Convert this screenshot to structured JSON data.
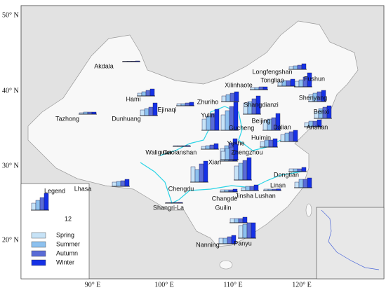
{
  "map": {
    "lat_labels": [
      "50° N",
      "40° N",
      "30° N",
      "20° N"
    ],
    "lon_labels": [
      "90° E",
      "100° E",
      "110° E",
      "120° E"
    ],
    "legend": {
      "title": "Legend",
      "scale": 12,
      "sample_values": [
        5,
        7,
        9,
        12
      ],
      "seasons": [
        {
          "name": "Spring",
          "color": "#c7e3f7"
        },
        {
          "name": "Summer",
          "color": "#8dc1ef"
        },
        {
          "name": "Autumn",
          "color": "#5a6cd6"
        },
        {
          "name": "Winter",
          "color": "#1531e6"
        }
      ]
    },
    "stations": [
      {
        "name": "Akdala",
        "values": [
          0.3,
          0.4,
          0.4,
          0.5
        ]
      },
      {
        "name": "Hami",
        "values": [
          2,
          3,
          4,
          5
        ]
      },
      {
        "name": "Tazhong",
        "values": [
          1,
          1.5,
          1.5,
          1.5
        ]
      },
      {
        "name": "Dunhuang",
        "values": [
          4,
          5,
          6,
          9
        ]
      },
      {
        "name": "Ejinaqi",
        "values": [
          1.5,
          1.5,
          2,
          2.5
        ]
      },
      {
        "name": "Lhasa",
        "values": [
          3,
          3.5,
          4,
          5
        ]
      },
      {
        "name": "Zhuriho",
        "values": [
          4,
          5,
          6,
          7
        ]
      },
      {
        "name": "Xilinhaote",
        "values": [
          1.5,
          1.5,
          2,
          2
        ]
      },
      {
        "name": "Longfengshan",
        "values": [
          2,
          2.5,
          3,
          4
        ]
      },
      {
        "name": "Fushun",
        "values": [
          4,
          5,
          7,
          10
        ]
      },
      {
        "name": "Tongliao",
        "values": [
          3,
          4,
          4,
          5
        ]
      },
      {
        "name": "Shenyang",
        "values": [
          5,
          6,
          7,
          8
        ]
      },
      {
        "name": "Shangdianzi",
        "values": [
          8,
          9,
          11,
          13
        ]
      },
      {
        "name": "Benxi",
        "values": [
          5,
          7,
          8,
          9
        ]
      },
      {
        "name": "Anshan",
        "values": [
          3,
          4,
          4,
          5
        ]
      },
      {
        "name": "Beijing",
        "values": [
          7,
          8,
          9,
          12
        ]
      },
      {
        "name": "Dalian",
        "values": [
          5,
          6,
          7,
          8
        ]
      },
      {
        "name": "Yulin",
        "values": [
          8,
          10,
          12,
          15
        ]
      },
      {
        "name": "Gucheng",
        "values": [
          11,
          14,
          17,
          20
        ]
      },
      {
        "name": "Huimin",
        "values": [
          4,
          5,
          5,
          6
        ]
      },
      {
        "name": "Yushe",
        "values": [
          9,
          11,
          13,
          16
        ]
      },
      {
        "name": "Waliguan",
        "values": [
          0.5,
          0.5,
          0.5,
          0.6
        ]
      },
      {
        "name": "Gaolanshan",
        "values": [
          2,
          2.5,
          3,
          4
        ]
      },
      {
        "name": "Xian",
        "values": [
          6,
          8,
          9,
          11
        ]
      },
      {
        "name": "Zhengzhou",
        "values": [
          10,
          12,
          14,
          16
        ]
      },
      {
        "name": "Chengdu",
        "values": [
          11,
          9,
          13,
          15
        ]
      },
      {
        "name": "Shangri-La",
        "values": [
          0.4,
          0.4,
          0.5,
          0.5
        ]
      },
      {
        "name": "Changde",
        "values": [
          1.5,
          1.5,
          1.5,
          2
        ]
      },
      {
        "name": "Jinsha",
        "values": [
          2,
          3,
          3,
          4
        ]
      },
      {
        "name": "Lushan",
        "values": [
          1,
          1,
          1,
          1.2
        ]
      },
      {
        "name": "Dongtian",
        "values": [
          2,
          2,
          2,
          3
        ]
      },
      {
        "name": "Linan",
        "values": [
          4,
          6,
          6,
          7
        ]
      },
      {
        "name": "Guilin",
        "values": [
          3,
          3,
          3,
          4
        ]
      },
      {
        "name": "Nanning",
        "values": [
          4,
          4,
          5,
          6
        ]
      },
      {
        "name": "Panyu",
        "values": [
          9,
          10,
          11,
          11
        ]
      }
    ]
  }
}
